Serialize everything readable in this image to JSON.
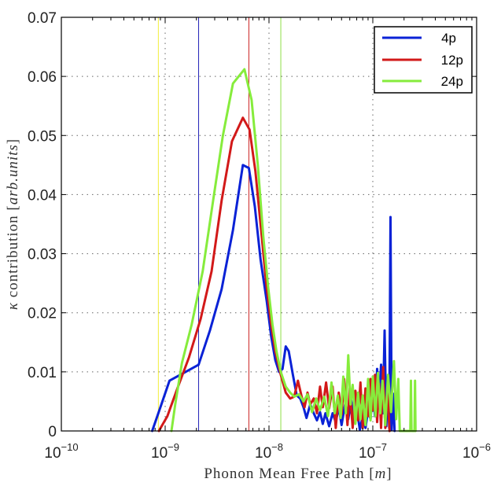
{
  "chart_data": {
    "type": "line",
    "xlabel_text": "Phonon Mean Free Path",
    "xlabel_unit": "m",
    "ylabel_symbol": "κ",
    "ylabel_text": "contribution",
    "ylabel_unit": "arb.units",
    "xscale": "log",
    "xlim": [
      1e-10,
      1e-06
    ],
    "ylim": [
      0,
      0.07
    ],
    "grid": true,
    "legend_position": "top-right",
    "x_ticks": [
      {
        "value": 1e-10,
        "base": "10",
        "exp": "−10"
      },
      {
        "value": 1e-09,
        "base": "10",
        "exp": "−9"
      },
      {
        "value": 1e-08,
        "base": "10",
        "exp": "−8"
      },
      {
        "value": 1e-07,
        "base": "10",
        "exp": "−7"
      },
      {
        "value": 1e-06,
        "base": "10",
        "exp": "−6"
      }
    ],
    "y_ticks": [
      {
        "value": 0,
        "label": "0"
      },
      {
        "value": 0.01,
        "label": "0.01"
      },
      {
        "value": 0.02,
        "label": "0.02"
      },
      {
        "value": 0.03,
        "label": "0.03"
      },
      {
        "value": 0.04,
        "label": "0.04"
      },
      {
        "value": 0.05,
        "label": "0.05"
      },
      {
        "value": 0.06,
        "label": "0.06"
      },
      {
        "value": 0.07,
        "label": "0.07"
      }
    ],
    "vertical_lines": [
      {
        "x": 8.6e-10,
        "color": "#f2ee3a"
      },
      {
        "x": 2.1e-09,
        "color": "#2424b8"
      },
      {
        "x": 6.4e-09,
        "color": "#cc2222"
      },
      {
        "x": 1.3e-08,
        "color": "#8ee048"
      }
    ],
    "series": [
      {
        "name": "4p",
        "color": "#0a22d6",
        "points": [
          [
            7.5e-10,
            0
          ],
          [
            9.2e-10,
            0.0045
          ],
          [
            1.1e-09,
            0.0085
          ],
          [
            1.5e-09,
            0.0098
          ],
          [
            2.1e-09,
            0.0112
          ],
          [
            2.7e-09,
            0.017
          ],
          [
            3.5e-09,
            0.024
          ],
          [
            4.5e-09,
            0.034
          ],
          [
            5.6e-09,
            0.045
          ],
          [
            6.4e-09,
            0.0445
          ],
          [
            7.3e-09,
            0.038
          ],
          [
            8.3e-09,
            0.029
          ],
          [
            9.5e-09,
            0.022
          ],
          [
            1.05e-08,
            0.016
          ],
          [
            1.15e-08,
            0.012
          ],
          [
            1.25e-08,
            0.01
          ],
          [
            1.35e-08,
            0.0105
          ],
          [
            1.45e-08,
            0.0143
          ],
          [
            1.55e-08,
            0.0135
          ],
          [
            1.7e-08,
            0.0095
          ],
          [
            1.85e-08,
            0.006
          ],
          [
            2e-08,
            0.0055
          ],
          [
            2.15e-08,
            0.004
          ],
          [
            2.3e-08,
            0.0022
          ],
          [
            2.5e-08,
            0.0045
          ],
          [
            2.7e-08,
            0.003
          ],
          [
            2.9e-08,
            0.0018
          ],
          [
            3.1e-08,
            0.0032
          ],
          [
            3.3e-08,
            0.0012
          ],
          [
            3.5e-08,
            0.003
          ],
          [
            3.8e-08,
            0.0008
          ],
          [
            4.1e-08,
            0.003
          ],
          [
            4.4e-08,
            0.0015
          ],
          [
            4.7e-08,
            0.004
          ],
          [
            5e-08,
            0.001
          ],
          [
            5.4e-08,
            0.0045
          ],
          [
            5.8e-08,
            0.002
          ],
          [
            6.2e-08,
            0.0052
          ],
          [
            6.6e-08,
            0.0015
          ],
          [
            7e-08,
            0.0038
          ],
          [
            7.5e-08,
            0.0002
          ],
          [
            8e-08,
            0.0025
          ],
          [
            8.5e-08,
            0.0005
          ],
          [
            9e-08,
            0.0035
          ],
          [
            9.5e-08,
            0.002
          ],
          [
            1e-07,
            0.0065
          ],
          [
            1.05e-07,
            0.0025
          ],
          [
            1.1e-07,
            0.0105
          ],
          [
            1.15e-07,
            0.005
          ],
          [
            1.2e-07,
            0.0112
          ],
          [
            1.25e-07,
            0.003
          ],
          [
            1.3e-07,
            0.017
          ],
          [
            1.35e-07,
            0.0008
          ],
          [
            1.4e-07,
            0.0092
          ],
          [
            1.44e-07,
            0.0005
          ],
          [
            1.48e-07,
            0.0362
          ],
          [
            1.52e-07,
            0.0002
          ],
          [
            1.57e-07,
            0.0063
          ],
          [
            1.62e-07,
            0
          ]
        ]
      },
      {
        "name": "12p",
        "color": "#d21919",
        "points": [
          [
            8.7e-10,
            0
          ],
          [
            1.05e-09,
            0.0025
          ],
          [
            1.3e-09,
            0.007
          ],
          [
            1.7e-09,
            0.0125
          ],
          [
            2.2e-09,
            0.019
          ],
          [
            2.8e-09,
            0.027
          ],
          [
            3.5e-09,
            0.039
          ],
          [
            4.4e-09,
            0.049
          ],
          [
            5.6e-09,
            0.053
          ],
          [
            6.5e-09,
            0.051
          ],
          [
            7.4e-09,
            0.044
          ],
          [
            8.4e-09,
            0.034
          ],
          [
            9.4e-09,
            0.025
          ],
          [
            1.05e-08,
            0.018
          ],
          [
            1.15e-08,
            0.0135
          ],
          [
            1.3e-08,
            0.0095
          ],
          [
            1.45e-08,
            0.0065
          ],
          [
            1.6e-08,
            0.0055
          ],
          [
            1.75e-08,
            0.0058
          ],
          [
            1.9e-08,
            0.0085
          ],
          [
            2.05e-08,
            0.006
          ],
          [
            2.2e-08,
            0.004
          ],
          [
            2.35e-08,
            0.0065
          ],
          [
            2.5e-08,
            0.0045
          ],
          [
            2.7e-08,
            0.0055
          ],
          [
            2.9e-08,
            0.003
          ],
          [
            3.1e-08,
            0.0075
          ],
          [
            3.3e-08,
            0.004
          ],
          [
            3.55e-08,
            0.0082
          ],
          [
            3.8e-08,
            0.0038
          ],
          [
            4.1e-08,
            0.0075
          ],
          [
            4.4e-08,
            0.0005
          ],
          [
            4.7e-08,
            0.0065
          ],
          [
            5e-08,
            0.0028
          ],
          [
            5.3e-08,
            0.0088
          ],
          [
            5.7e-08,
            0.001
          ],
          [
            6e-08,
            0.0072
          ],
          [
            6.4e-08,
            0.0005
          ],
          [
            6.8e-08,
            0.0068
          ],
          [
            7.2e-08,
            0.0018
          ],
          [
            7.6e-08,
            0.0082
          ],
          [
            8e-08,
            0.0005
          ],
          [
            8.5e-08,
            0.0072
          ],
          [
            9e-08,
            0.0025
          ],
          [
            9.5e-08,
            0.0088
          ],
          [
            1e-07,
            0.0035
          ],
          [
            1.05e-07,
            0.0095
          ],
          [
            1.1e-07,
            0.0015
          ],
          [
            1.15e-07,
            0.008
          ],
          [
            1.2e-07,
            0.0005
          ],
          [
            1.26e-07,
            0.0108
          ],
          [
            1.32e-07,
            0.0005
          ],
          [
            1.38e-07,
            0.0075
          ],
          [
            1.45e-07,
            0
          ]
        ]
      },
      {
        "name": "24p",
        "color": "#86ec3c",
        "points": [
          [
            1.15e-09,
            0
          ],
          [
            1.25e-09,
            0.0045
          ],
          [
            1.45e-09,
            0.0115
          ],
          [
            1.8e-09,
            0.018
          ],
          [
            2.3e-09,
            0.027
          ],
          [
            2.9e-09,
            0.039
          ],
          [
            3.6e-09,
            0.05
          ],
          [
            4.5e-09,
            0.0588
          ],
          [
            5.8e-09,
            0.0612
          ],
          [
            6.8e-09,
            0.056
          ],
          [
            7.8e-09,
            0.045
          ],
          [
            8.8e-09,
            0.033
          ],
          [
            9.8e-09,
            0.0245
          ],
          [
            1.08e-08,
            0.018
          ],
          [
            1.18e-08,
            0.0135
          ],
          [
            1.3e-08,
            0.01
          ],
          [
            1.45e-08,
            0.0075
          ],
          [
            1.6e-08,
            0.0065
          ],
          [
            1.75e-08,
            0.0058
          ],
          [
            1.95e-08,
            0.0062
          ],
          [
            2.15e-08,
            0.005
          ],
          [
            2.35e-08,
            0.0062
          ],
          [
            2.6e-08,
            0.0032
          ],
          [
            2.85e-08,
            0.0055
          ],
          [
            3.1e-08,
            0.0035
          ],
          [
            3.4e-08,
            0.0058
          ],
          [
            3.7e-08,
            0.0025
          ],
          [
            4e-08,
            0.0082
          ],
          [
            4.3e-08,
            0.003
          ],
          [
            4.6e-08,
            0.006
          ],
          [
            4.9e-08,
            0.0022
          ],
          [
            5.2e-08,
            0.0092
          ],
          [
            5.5e-08,
            0.003
          ],
          [
            5.8e-08,
            0.0128
          ],
          [
            6.1e-08,
            0.0045
          ],
          [
            6.4e-08,
            0.0078
          ],
          [
            6.8e-08,
            0.0012
          ],
          [
            7.2e-08,
            0.0065
          ],
          [
            7.6e-08,
            0.002
          ],
          [
            8e-08,
            0.006
          ],
          [
            8.5e-08,
            0.001
          ],
          [
            9e-08,
            0.0088
          ],
          [
            9.5e-08,
            0.0018
          ],
          [
            1e-07,
            0.0092
          ],
          [
            1.06e-07,
            0.0025
          ],
          [
            1.12e-07,
            0.0098
          ],
          [
            1.18e-07,
            0.003
          ],
          [
            1.24e-07,
            0.0085
          ],
          [
            1.32e-07,
            0.001
          ],
          [
            1.4e-07,
            0.0095
          ],
          [
            1.5e-07,
            0.0032
          ],
          [
            1.6e-07,
            0.0118
          ],
          [
            1.68e-07,
            0.002
          ],
          [
            1.76e-07,
            0.0088
          ],
          [
            1.82e-07,
            0
          ],
          [
            2.3e-07,
            0
          ],
          [
            2.33e-07,
            0.0085
          ],
          [
            2.36e-07,
            0
          ],
          [
            2.52e-07,
            0
          ],
          [
            2.55e-07,
            0.0085
          ],
          [
            2.58e-07,
            0
          ]
        ]
      }
    ]
  }
}
